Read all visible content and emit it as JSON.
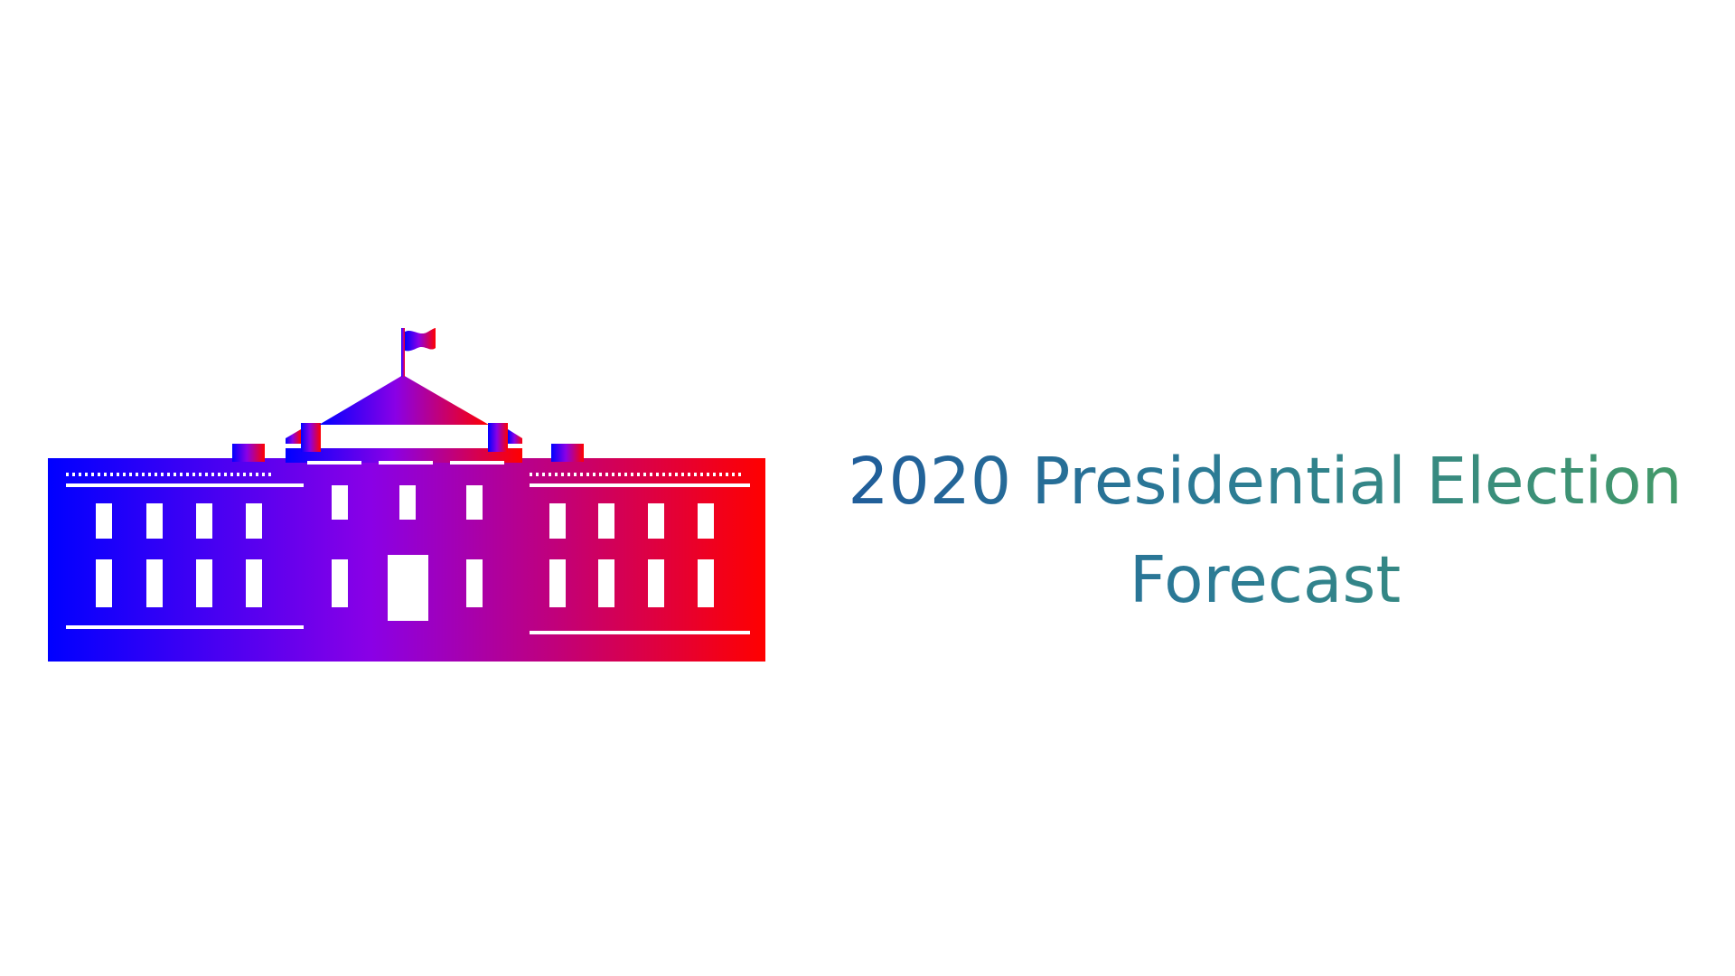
{
  "logo": {
    "icon": "white-house-icon",
    "gradient_start": "#0000ff",
    "gradient_mid": "#8a00e6",
    "gradient_end": "#ff0000"
  },
  "title": {
    "line1": "2020 Presidential Election",
    "line2": "Forecast",
    "gradient_start": "#1f5a9a",
    "gradient_end": "#459c66"
  }
}
